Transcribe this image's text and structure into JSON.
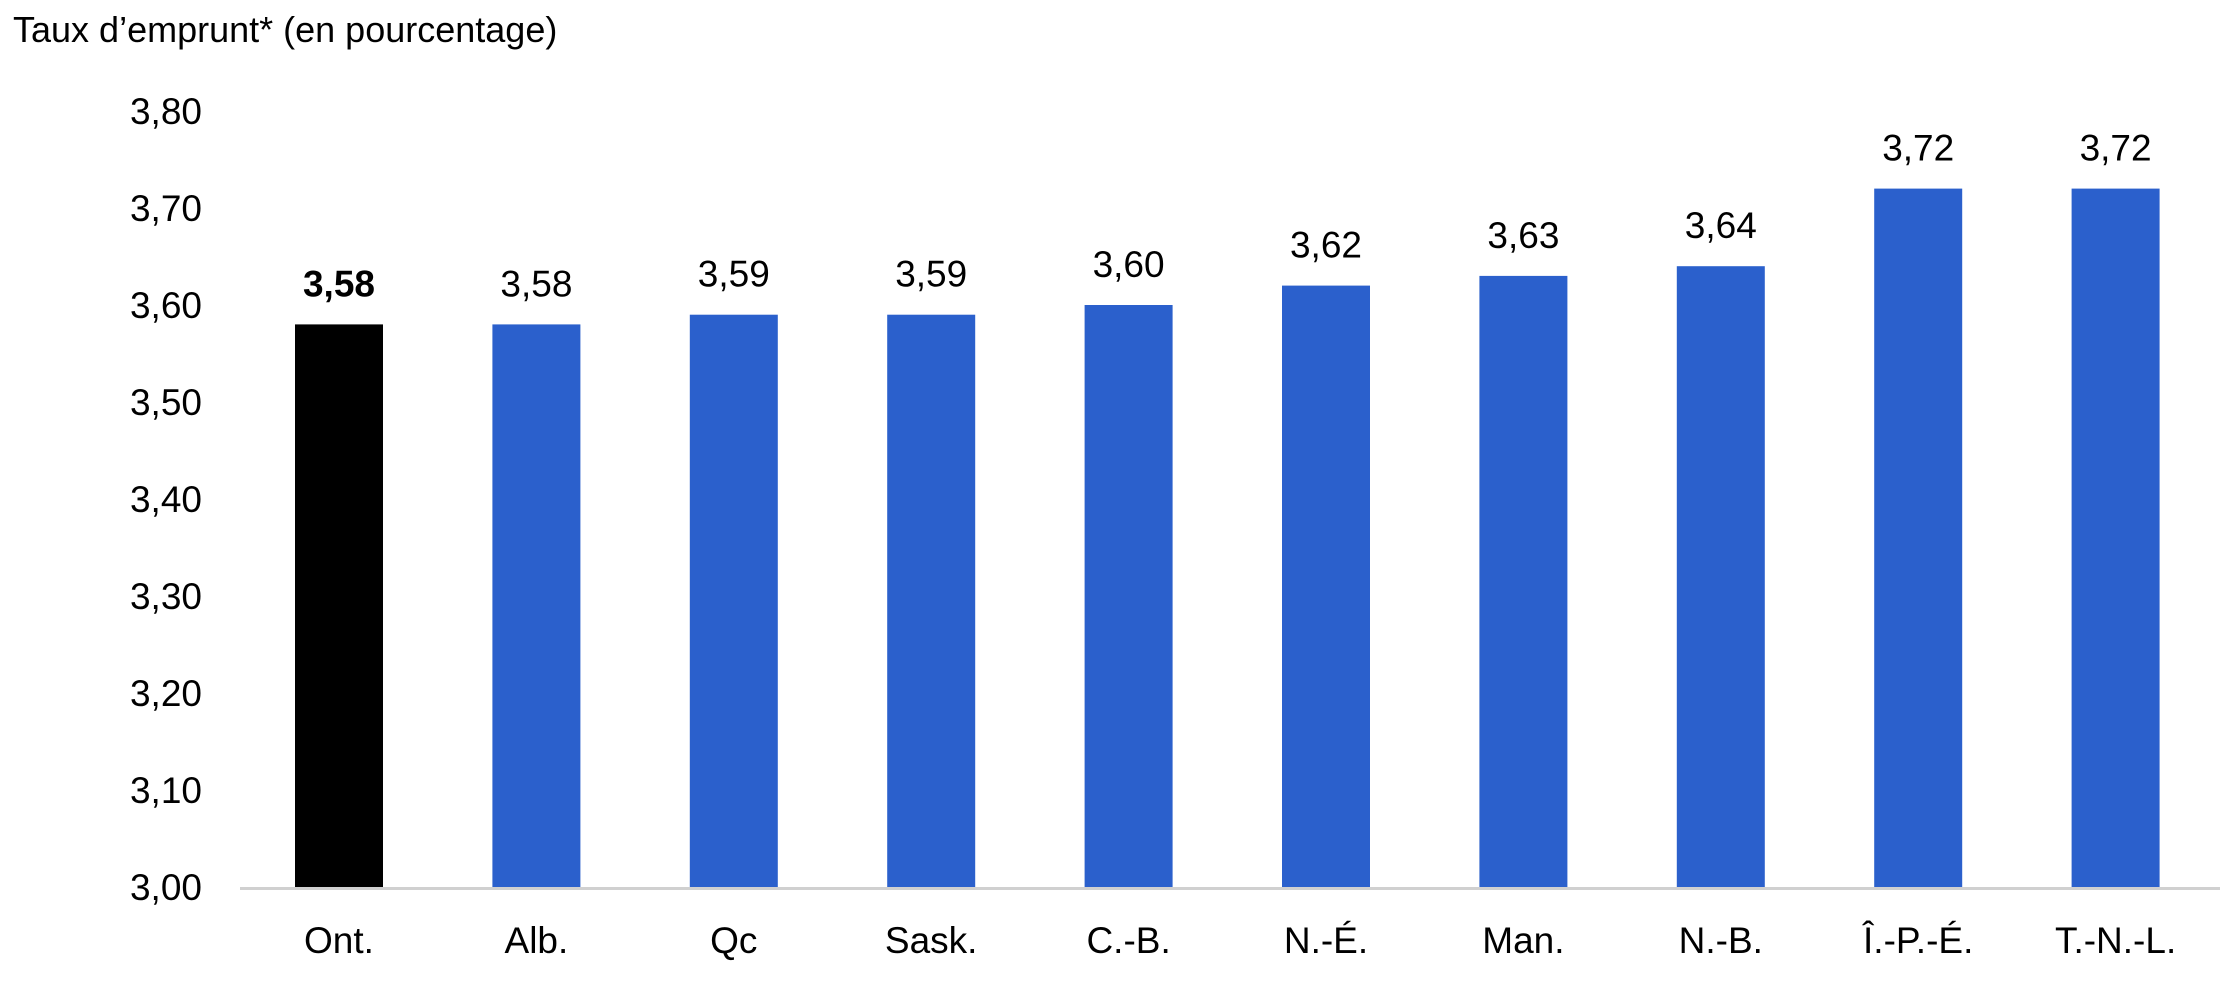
{
  "chart_data": {
    "type": "bar",
    "title": "",
    "ylabel": "Taux d’emprunt* (en pourcentage)",
    "xlabel": "",
    "ylim": [
      3.0,
      3.8
    ],
    "yticks": [
      "3,00",
      "3,10",
      "3,20",
      "3,30",
      "3,40",
      "3,50",
      "3,60",
      "3,70",
      "3,80"
    ],
    "yticks_values": [
      3.0,
      3.1,
      3.2,
      3.3,
      3.4,
      3.5,
      3.6,
      3.7,
      3.8
    ],
    "grid": false,
    "categories": [
      "Ont.",
      "Alb.",
      "Qc",
      "Sask.",
      "C.-B.",
      "N.-É.",
      "Man.",
      "N.-B.",
      "Î.-P.-É.",
      "T.-N.-L."
    ],
    "values": [
      3.58,
      3.58,
      3.59,
      3.59,
      3.6,
      3.62,
      3.63,
      3.64,
      3.72,
      3.72
    ],
    "value_labels": [
      "3,58",
      "3,58",
      "3,59",
      "3,59",
      "3,60",
      "3,62",
      "3,63",
      "3,64",
      "3,72",
      "3,72"
    ],
    "highlight_index": 0,
    "colors": {
      "highlight": "#000000",
      "default": "#2b60cc",
      "axis": "#d0d0d0"
    }
  }
}
